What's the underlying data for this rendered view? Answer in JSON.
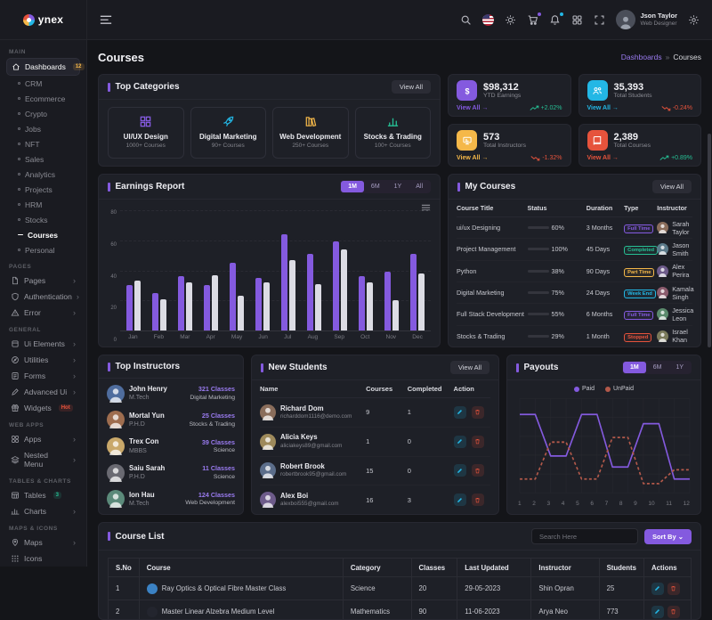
{
  "brand": {
    "name": "ynex"
  },
  "page_title": "Courses",
  "breadcrumb": {
    "parent": "Dashboards",
    "separator": "»",
    "current": "Courses"
  },
  "header": {
    "user": {
      "name": "Json Taylor",
      "role": "Web Designer"
    },
    "icons": [
      {
        "name": "search-icon"
      },
      {
        "name": "language-flag-icon"
      },
      {
        "name": "theme-light-icon"
      },
      {
        "name": "cart-icon",
        "badge_color": "#845adf"
      },
      {
        "name": "notifications-bell-icon",
        "badge_color": "#23b7e5"
      },
      {
        "name": "apps-grid-icon"
      },
      {
        "name": "fullscreen-icon"
      }
    ]
  },
  "sidebar": {
    "sections": [
      {
        "label": "MAIN",
        "items": [
          {
            "label": "Dashboards",
            "icon": "home-icon",
            "badge": "12",
            "badge_color": "#f5b849",
            "active": true,
            "children": [
              "CRM",
              "Ecommerce",
              "Crypto",
              "Jobs",
              "NFT",
              "Sales",
              "Analytics",
              "Projects",
              "HRM",
              "Stocks",
              "Courses",
              "Personal"
            ],
            "active_child": "Courses"
          }
        ]
      },
      {
        "label": "PAGES",
        "items": [
          {
            "label": "Pages",
            "icon": "file-icon",
            "chevron": true
          },
          {
            "label": "Authentication",
            "icon": "shield-icon",
            "chevron": true
          },
          {
            "label": "Error",
            "icon": "alert-triangle-icon",
            "chevron": true
          }
        ]
      },
      {
        "label": "GENERAL",
        "items": [
          {
            "label": "Ui Elements",
            "icon": "box-icon",
            "chevron": true
          },
          {
            "label": "Utilities",
            "icon": "compass-icon",
            "chevron": true
          },
          {
            "label": "Forms",
            "icon": "form-icon",
            "chevron": true
          },
          {
            "label": "Advanced Ui",
            "icon": "pen-icon",
            "chevron": true
          },
          {
            "label": "Widgets",
            "icon": "gift-icon",
            "badge": "Hot",
            "badge_color": "#e6533c"
          }
        ]
      },
      {
        "label": "WEB APPS",
        "items": [
          {
            "label": "Apps",
            "icon": "apps-grid-icon",
            "chevron": true
          },
          {
            "label": "Nested Menu",
            "icon": "layers-icon",
            "chevron": true
          }
        ]
      },
      {
        "label": "TABLES & CHARTS",
        "items": [
          {
            "label": "Tables",
            "icon": "table-icon",
            "badge": "3",
            "badge_color": "#26bf94"
          },
          {
            "label": "Charts",
            "icon": "chart-icon",
            "chevron": true
          }
        ]
      },
      {
        "label": "MAPS & ICONS",
        "items": [
          {
            "label": "Maps",
            "icon": "map-pin-icon",
            "chevron": true
          },
          {
            "label": "Icons",
            "icon": "icons-grid-icon"
          }
        ]
      }
    ]
  },
  "top_categories": {
    "title": "Top Categories",
    "view_all": "View All",
    "items": [
      {
        "name": "UI/UX Design",
        "courses": "1000+ Courses",
        "color": "#845adf",
        "icon": "layout-grid-icon"
      },
      {
        "name": "Digital Marketing",
        "courses": "90+ Courses",
        "color": "#23b7e5",
        "icon": "rocket-icon"
      },
      {
        "name": "Web Development",
        "courses": "250+ Courses",
        "color": "#f5b849",
        "icon": "books-icon"
      },
      {
        "name": "Stocks & Trading",
        "courses": "100+ Courses",
        "color": "#26bf94",
        "icon": "bar-chart-icon"
      }
    ]
  },
  "kpis": [
    {
      "icon": "earnings-icon",
      "color": "#845adf",
      "value": "$98,312",
      "label": "YTD Earnings",
      "link": "View All",
      "change": "+2.02%",
      "trend": "up",
      "change_color": "#26bf94"
    },
    {
      "icon": "students-icon",
      "color": "#23b7e5",
      "value": "35,393",
      "label": "Total Students",
      "link": "View All",
      "change": "-0.24%",
      "trend": "down",
      "change_color": "#e6533c"
    },
    {
      "icon": "instructors-icon",
      "color": "#f5b849",
      "value": "573",
      "label": "Total Instructors",
      "link": "View All",
      "change": "-1.32%",
      "trend": "down",
      "change_color": "#e6533c"
    },
    {
      "icon": "courses-icon",
      "color": "#e6533c",
      "value": "2,389",
      "label": "Total Courses",
      "link": "View All",
      "change": "+0.89%",
      "trend": "up",
      "change_color": "#26bf94"
    }
  ],
  "earnings": {
    "title": "Earnings Report",
    "tabs": [
      "1M",
      "6M",
      "1Y",
      "All"
    ],
    "active_tab": "1M",
    "chart_data": {
      "type": "bar",
      "categories": [
        "Jan",
        "Feb",
        "Mar",
        "Apr",
        "May",
        "Jun",
        "Jul",
        "Aug",
        "Sep",
        "Oct",
        "Nov",
        "Dec"
      ],
      "series": [
        {
          "name": "Current",
          "color": "#845adf",
          "values": [
            30,
            25,
            36,
            30,
            45,
            35,
            64,
            51,
            59,
            36,
            39,
            51
          ]
        },
        {
          "name": "Previous",
          "color": "#dcdce4",
          "values": [
            33,
            21,
            32,
            37,
            23,
            32,
            47,
            31,
            54,
            32,
            20,
            38
          ]
        }
      ],
      "ylim": [
        0,
        80
      ],
      "yticks": [
        80,
        60,
        40,
        20,
        0
      ],
      "grid": "dashed-horizontal",
      "legend_position": "none"
    }
  },
  "my_courses": {
    "title": "My Courses",
    "view_all": "View All",
    "columns": [
      "Course Title",
      "Status",
      "Duration",
      "Type",
      "Instructor"
    ],
    "rows": [
      {
        "title": "ui/ux Designing",
        "percent": 60,
        "color": "#845adf",
        "duration": "3 Months",
        "type": "Full Time",
        "type_color": "#845adf",
        "instructor": "Sarah Taylor",
        "avatar_color": "#8a6d5b"
      },
      {
        "title": "Project Management",
        "percent": 100,
        "color": "#26bf94",
        "duration": "45 Days",
        "type": "Completed",
        "type_color": "#26bf94",
        "instructor": "Jason Smith",
        "avatar_color": "#5b7a8a"
      },
      {
        "title": "Python",
        "percent": 38,
        "color": "#f5b849",
        "duration": "90 Days",
        "type": "Part Time",
        "type_color": "#f5b849",
        "instructor": "Alex Perira",
        "avatar_color": "#6d5b8a"
      },
      {
        "title": "Digital Marketing",
        "percent": 75,
        "color": "#23b7e5",
        "duration": "24 Days",
        "type": "Week End",
        "type_color": "#23b7e5",
        "instructor": "Kamala Singh",
        "avatar_color": "#8a5b6d"
      },
      {
        "title": "Full Stack Development",
        "percent": 55,
        "color": "#845adf",
        "duration": "6 Months",
        "type": "Full Time",
        "type_color": "#845adf",
        "instructor": "Jessica Leon",
        "avatar_color": "#5b8a6d"
      },
      {
        "title": "Stocks & Trading",
        "percent": 29,
        "color": "#e6533c",
        "duration": "1 Month",
        "type": "Stopped",
        "type_color": "#e6533c",
        "instructor": "Israel Khan",
        "avatar_color": "#7a7a5b"
      }
    ]
  },
  "top_instructors": {
    "title": "Top Instructors",
    "items": [
      {
        "name": "John Henry",
        "degree": "M.Tech",
        "classes": "321 Classes",
        "subject": "Digital Marketing",
        "avatar_color": "#4f6d9e"
      },
      {
        "name": "Mortal Yun",
        "degree": "P.H.D",
        "classes": "25 Classes",
        "subject": "Stocks & Trading",
        "avatar_color": "#9e6d4f"
      },
      {
        "name": "Trex Con",
        "degree": "MBBS",
        "classes": "39 Classes",
        "subject": "Science",
        "avatar_color": "#c9a86a"
      },
      {
        "name": "Saiu Sarah",
        "degree": "P.H.D",
        "classes": "11 Classes",
        "subject": "Science",
        "avatar_color": "#6a6a72"
      },
      {
        "name": "Ion Hau",
        "degree": "M.Tech",
        "classes": "124 Classes",
        "subject": "Web Development",
        "avatar_color": "#5b8a7a"
      }
    ]
  },
  "new_students": {
    "title": "New Students",
    "view_all": "View All",
    "columns": [
      "Name",
      "Courses",
      "Completed",
      "Action"
    ],
    "rows": [
      {
        "name": "Richard Dom",
        "email": "richarddom1116@demo.com",
        "courses": "9",
        "completed": "1",
        "avatar_color": "#8a6d5b"
      },
      {
        "name": "Alicia Keys",
        "email": "aliciakeys89@gmail.com",
        "courses": "1",
        "completed": "0",
        "avatar_color": "#9e8a5b"
      },
      {
        "name": "Robert Brook",
        "email": "robertbrook95@gmail.com",
        "courses": "15",
        "completed": "0",
        "avatar_color": "#5b6d8a"
      },
      {
        "name": "Alex Boi",
        "email": "alexboi555@gmail.com",
        "courses": "16",
        "completed": "3",
        "avatar_color": "#6d5b8a"
      }
    ]
  },
  "payouts": {
    "title": "Payouts",
    "tabs": [
      "1M",
      "6M",
      "1Y"
    ],
    "active_tab": "1M",
    "chart_data": {
      "type": "line",
      "x": [
        1,
        2,
        3,
        4,
        5,
        6,
        7,
        8,
        9,
        10,
        11,
        12
      ],
      "series": [
        {
          "name": "Paid",
          "style": "solid",
          "color": "#845adf",
          "values": [
            85,
            85,
            40,
            40,
            85,
            85,
            28,
            28,
            75,
            75,
            15,
            15
          ]
        },
        {
          "name": "UnPaid",
          "style": "dashed",
          "color": "#b3594a",
          "values": [
            15,
            15,
            55,
            55,
            15,
            15,
            60,
            60,
            10,
            10,
            25,
            25
          ]
        }
      ],
      "legend_position": "top",
      "grid": "both",
      "ylim": [
        0,
        100
      ]
    }
  },
  "course_list": {
    "title": "Course List",
    "search_placeholder": "Search Here",
    "sort_label": "Sort By",
    "columns": [
      "S.No",
      "Course",
      "Category",
      "Classes",
      "Last Updated",
      "Instructor",
      "Students",
      "Actions"
    ],
    "rows": [
      {
        "sno": "1",
        "course": "Ray Optics & Optical Fibre Master Class",
        "thumb_color": "#3b82c4",
        "category": "Science",
        "classes": "20",
        "updated": "29-05-2023",
        "instructor": "Shin Opran",
        "students": "25"
      },
      {
        "sno": "2",
        "course": "Master Linear Alzebra Medium Level",
        "thumb_color": "#23252e",
        "category": "Mathematics",
        "classes": "90",
        "updated": "11-06-2023",
        "instructor": "Arya Neo",
        "students": "773"
      }
    ]
  }
}
